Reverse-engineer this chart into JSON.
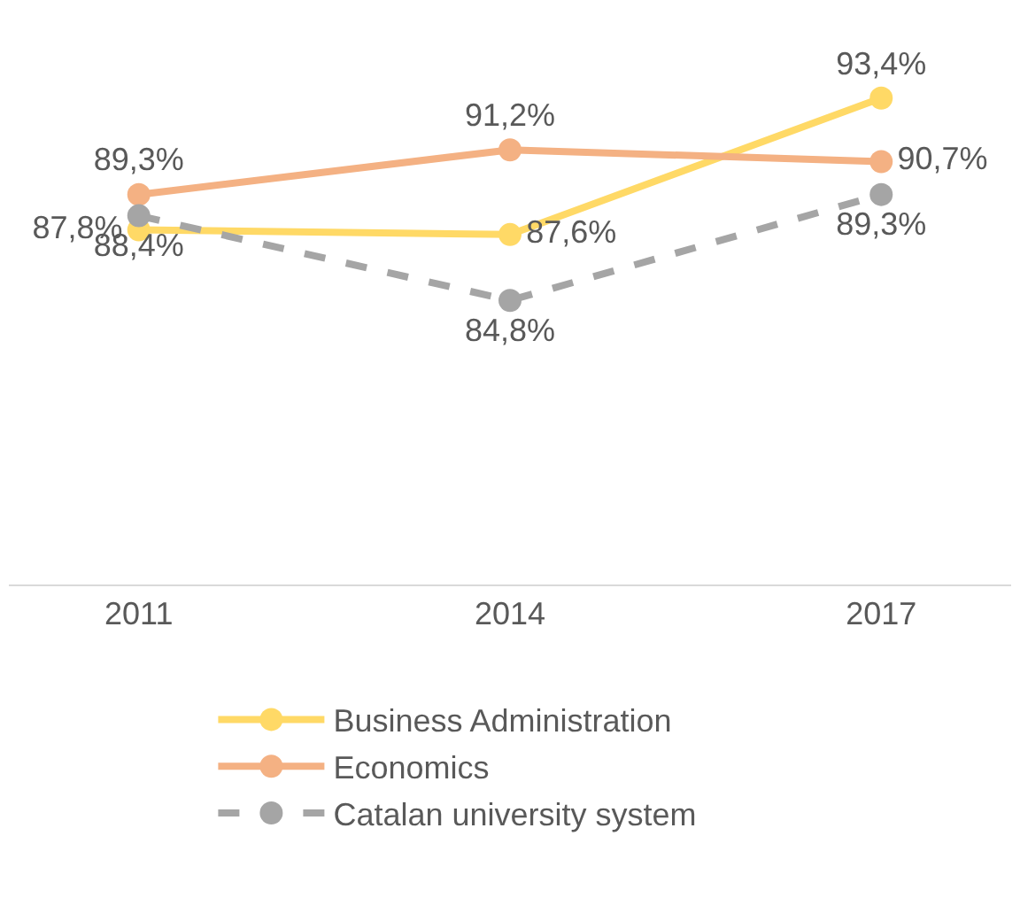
{
  "chart_data": {
    "type": "line",
    "categories": [
      "2011",
      "2014",
      "2017"
    ],
    "series": [
      {
        "name": "Business Administration",
        "color": "#ffd966",
        "values": [
          87.8,
          87.6,
          93.4
        ],
        "value_labels": [
          "87,8%",
          "87,6%",
          "93,4%"
        ],
        "line_style": "solid"
      },
      {
        "name": "Economics",
        "color": "#f4b183",
        "values": [
          89.3,
          91.2,
          90.7
        ],
        "value_labels": [
          "89,3%",
          "91,2%",
          "90,7%"
        ],
        "line_style": "solid"
      },
      {
        "name": "Catalan university system",
        "color": "#a5a5a5",
        "values": [
          88.4,
          84.8,
          89.3
        ],
        "value_labels": [
          "88,4%",
          "84,8%",
          "89,3%"
        ],
        "line_style": "dashed"
      }
    ],
    "tick_labels": "x",
    "legend": "bottom",
    "marker": "circle"
  }
}
